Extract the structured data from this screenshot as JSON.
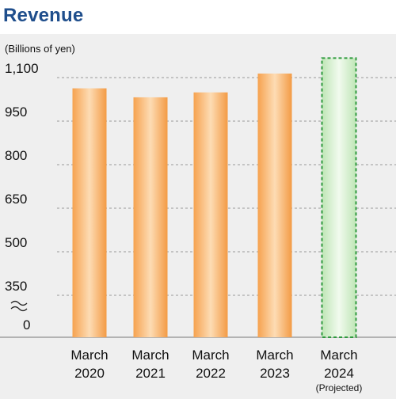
{
  "chart_data": {
    "type": "bar",
    "title": "Revenue",
    "unit_label": "(Billions of yen)",
    "categories": [
      {
        "line1": "March",
        "line2": "2020",
        "line3": ""
      },
      {
        "line1": "March",
        "line2": "2021",
        "line3": ""
      },
      {
        "line1": "March",
        "line2": "2022",
        "line3": ""
      },
      {
        "line1": "March",
        "line2": "2023",
        "line3": ""
      },
      {
        "line1": "March",
        "line2": "2024",
        "line3": "(Projected)"
      }
    ],
    "values": [
      1063,
      1032,
      1049,
      1114,
      1167
    ],
    "projected": [
      false,
      false,
      false,
      false,
      true
    ],
    "y_ticks": [
      {
        "value": 350,
        "label": "350"
      },
      {
        "value": 500,
        "label": "500"
      },
      {
        "value": 650,
        "label": "650"
      },
      {
        "value": 800,
        "label": "800"
      },
      {
        "value": 950,
        "label": "950"
      },
      {
        "value": 1100,
        "label": "1,100"
      }
    ],
    "axis_zero_label": "0",
    "axis_break": true,
    "ylim": [
      350,
      1100
    ],
    "grid": true,
    "colors": {
      "actual_bar": "#f7a65a",
      "projected_bar": "#d9f0d3",
      "projected_border": "#2f9a3e",
      "background": "#efefef",
      "title": "#1f4e8c"
    }
  }
}
